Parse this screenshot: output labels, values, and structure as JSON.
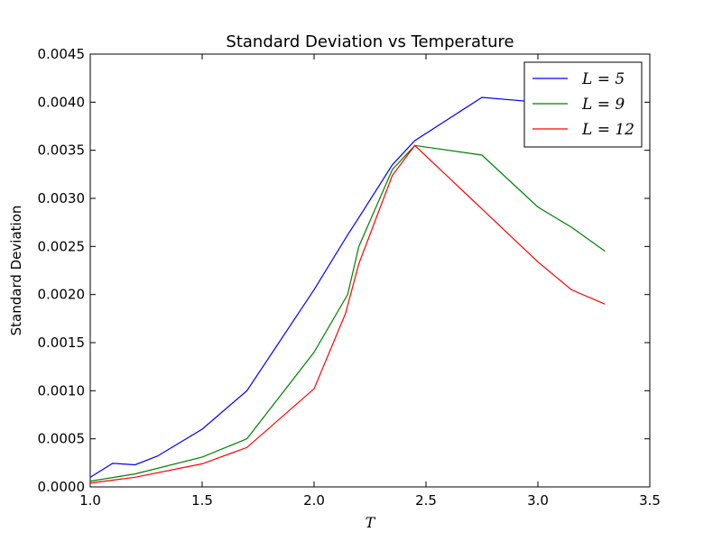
{
  "chart_data": {
    "type": "line",
    "title": "Standard Deviation vs Temperature",
    "xlabel": "T",
    "ylabel": "Standard Deviation",
    "xlim": [
      1.0,
      3.5
    ],
    "ylim": [
      0.0,
      0.0045
    ],
    "xticks": [
      "1.0",
      "1.5",
      "2.0",
      "2.5",
      "3.0",
      "3.5"
    ],
    "yticks": [
      "0.0000",
      "0.0005",
      "0.0010",
      "0.0015",
      "0.0020",
      "0.0025",
      "0.0030",
      "0.0035",
      "0.0040",
      "0.0045"
    ],
    "grid": false,
    "legend": "top-right",
    "series": [
      {
        "name": "L = 5",
        "color": "#0000ff",
        "points": [
          [
            1.0,
            0.0001
          ],
          [
            1.1,
            0.000245
          ],
          [
            1.2,
            0.00023
          ],
          [
            1.3,
            0.00032
          ],
          [
            1.5,
            0.0006
          ],
          [
            1.7,
            0.001
          ],
          [
            2.0,
            0.00205
          ],
          [
            2.15,
            0.00262
          ],
          [
            2.2,
            0.0028
          ],
          [
            2.35,
            0.00335
          ],
          [
            2.45,
            0.0036
          ],
          [
            2.75,
            0.00405
          ],
          [
            3.0,
            0.004
          ],
          [
            3.3,
            0.0039
          ]
        ]
      },
      {
        "name": "L = 9",
        "color": "#008000",
        "points": [
          [
            1.0,
            6e-05
          ],
          [
            1.2,
            0.000135
          ],
          [
            1.5,
            0.00031
          ],
          [
            1.7,
            0.0005
          ],
          [
            2.0,
            0.0014
          ],
          [
            2.15,
            0.002
          ],
          [
            2.2,
            0.0025
          ],
          [
            2.35,
            0.0033
          ],
          [
            2.45,
            0.00355
          ],
          [
            2.75,
            0.00345
          ],
          [
            3.0,
            0.00291
          ],
          [
            3.15,
            0.0027
          ],
          [
            3.3,
            0.00245
          ]
        ]
      },
      {
        "name": "L = 12",
        "color": "#ff0000",
        "points": [
          [
            1.0,
            4e-05
          ],
          [
            1.2,
            0.0001
          ],
          [
            1.5,
            0.00024
          ],
          [
            1.7,
            0.00041
          ],
          [
            2.0,
            0.00102
          ],
          [
            2.14,
            0.0018
          ],
          [
            2.2,
            0.00232
          ],
          [
            2.35,
            0.00324
          ],
          [
            2.45,
            0.00355
          ],
          [
            2.75,
            0.00289
          ],
          [
            3.0,
            0.00234
          ],
          [
            3.15,
            0.00205
          ],
          [
            3.3,
            0.0019
          ]
        ]
      }
    ]
  }
}
